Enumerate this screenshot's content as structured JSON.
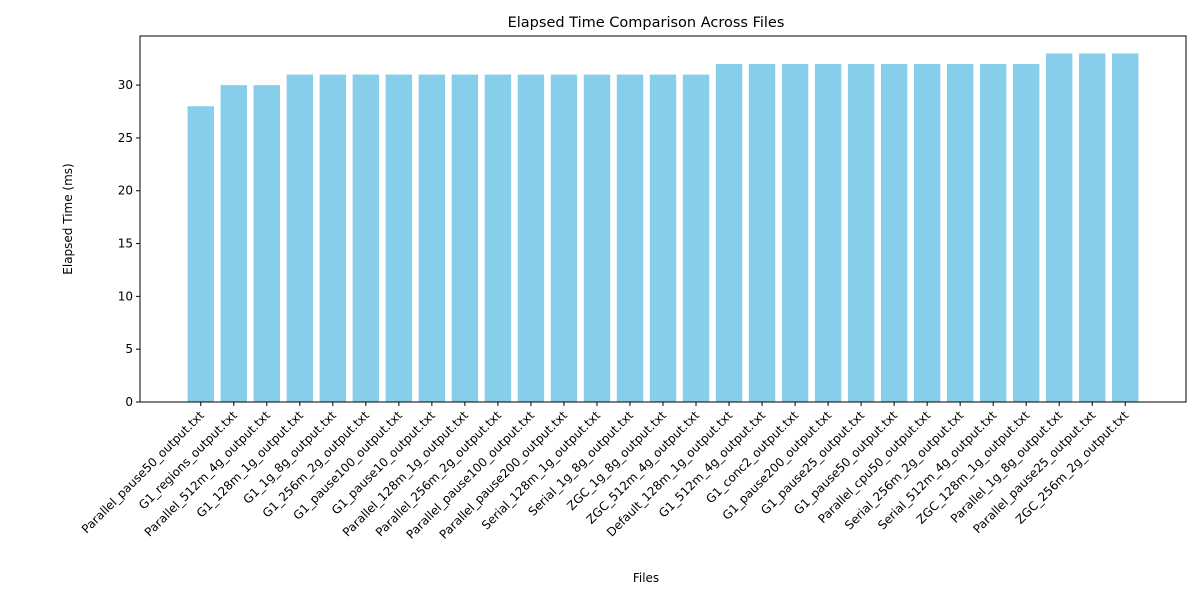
{
  "chart_data": {
    "type": "bar",
    "title": "Elapsed Time Comparison Across Files",
    "xlabel": "Files",
    "ylabel": "Elapsed Time (ms)",
    "ylim": [
      0,
      34.65
    ],
    "yticks": [
      0,
      5,
      10,
      15,
      20,
      25,
      30
    ],
    "grid": false,
    "bar_color": "#87CEEB",
    "categories": [
      "Parallel_pause50_output.txt",
      "G1_regions_output.txt",
      "Parallel_512m_4g_output.txt",
      "G1_128m_1g_output.txt",
      "G1_1g_8g_output.txt",
      "G1_256m_2g_output.txt",
      "G1_pause100_output.txt",
      "G1_pause10_output.txt",
      "Parallel_128m_1g_output.txt",
      "Parallel_256m_2g_output.txt",
      "Parallel_pause100_output.txt",
      "Parallel_pause200_output.txt",
      "Serial_128m_1g_output.txt",
      "Serial_1g_8g_output.txt",
      "ZGC_1g_8g_output.txt",
      "ZGC_512m_4g_output.txt",
      "Default_128m_1g_output.txt",
      "G1_512m_4g_output.txt",
      "G1_conc2_output.txt",
      "G1_pause200_output.txt",
      "G1_pause25_output.txt",
      "G1_pause50_output.txt",
      "Parallel_cpu50_output.txt",
      "Serial_256m_2g_output.txt",
      "Serial_512m_4g_output.txt",
      "ZGC_128m_1g_output.txt",
      "Parallel_1g_8g_output.txt",
      "Parallel_pause25_output.txt",
      "ZGC_256m_2g_output.txt"
    ],
    "values": [
      28,
      30,
      30,
      31,
      31,
      31,
      31,
      31,
      31,
      31,
      31,
      31,
      31,
      31,
      31,
      31,
      32,
      32,
      32,
      32,
      32,
      32,
      32,
      32,
      32,
      32,
      33,
      33,
      33
    ]
  }
}
